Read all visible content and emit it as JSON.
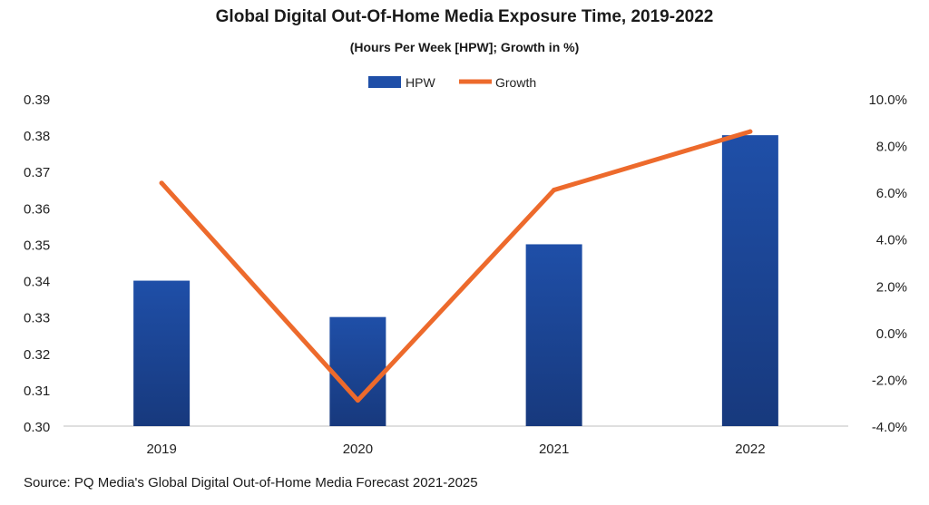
{
  "chart_data": {
    "type": "bar",
    "title": "Global Digital Out-Of-Home Media Exposure Time, 2019-2022",
    "subtitle": "(Hours Per Week [HPW]; Growth in %)",
    "categories": [
      "2019",
      "2020",
      "2021",
      "2022"
    ],
    "series": [
      {
        "name": "HPW",
        "type": "bar",
        "axis": "left",
        "values": [
          0.34,
          0.33,
          0.35,
          0.38
        ],
        "color": "#1f4fa8"
      },
      {
        "name": "Growth",
        "type": "line",
        "axis": "right",
        "values": [
          6.4,
          -2.9,
          6.1,
          8.6
        ],
        "color": "#ed6a2c"
      }
    ],
    "y_left": {
      "ylim": [
        0.3,
        0.39
      ],
      "ticks": [
        "0.30",
        "0.31",
        "0.32",
        "0.33",
        "0.34",
        "0.35",
        "0.36",
        "0.37",
        "0.38",
        "0.39"
      ]
    },
    "y_right": {
      "ylim": [
        -4.0,
        10.0
      ],
      "ticks": [
        "-4.0%",
        "-2.0%",
        "0.0%",
        "2.0%",
        "4.0%",
        "6.0%",
        "8.0%",
        "10.0%"
      ]
    },
    "legend": {
      "placement": "top-center",
      "entries": [
        "HPW",
        "Growth"
      ]
    },
    "grid": false,
    "source": "Source: PQ Media's Global Digital Out-of-Home Media Forecast 2021-2025"
  }
}
